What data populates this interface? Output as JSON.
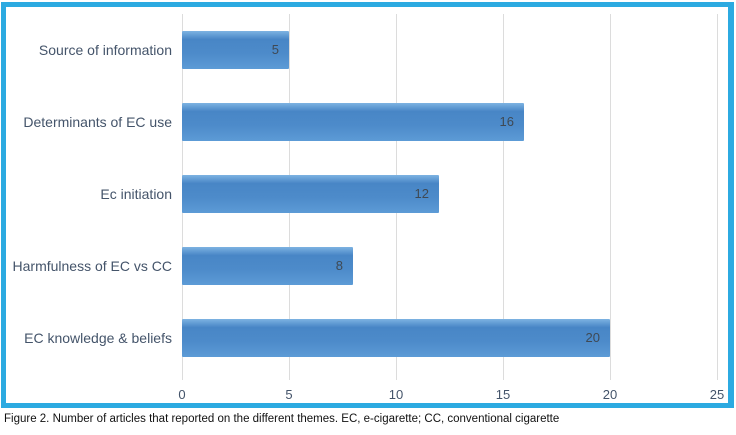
{
  "caption": "Figure 2. Number of articles that reported on the different themes. EC, e-cigarette; CC, conventional cigarette",
  "chart_data": {
    "type": "bar",
    "orientation": "horizontal",
    "title": "",
    "xlabel": "",
    "ylabel": "",
    "categories": [
      "Source of information",
      "Determinants of EC use",
      "Ec initiation",
      "Harmfulness of EC vs CC",
      "EC knowledge & beliefs"
    ],
    "values": [
      5,
      16,
      12,
      8,
      20
    ],
    "data_labels": [
      "5",
      "16",
      "12",
      "8",
      "20"
    ],
    "data_label_position": "inside-end",
    "xlim": [
      0,
      25
    ],
    "xticks": [
      0,
      5,
      10,
      15,
      20,
      25
    ],
    "grid": "vertical-on",
    "legend_position": "none",
    "colors": {
      "frame_border": "#2caae1",
      "bar_top": "#7db3e2",
      "bar_main": "#4886c6",
      "bar_mid": "#4d8bca",
      "bar_bottom": "#5c9bd6",
      "gridline": "#dcdcdc",
      "axis_text": "#44546a",
      "bar_label_text": "#3f4954",
      "background": "#ffffff"
    }
  }
}
